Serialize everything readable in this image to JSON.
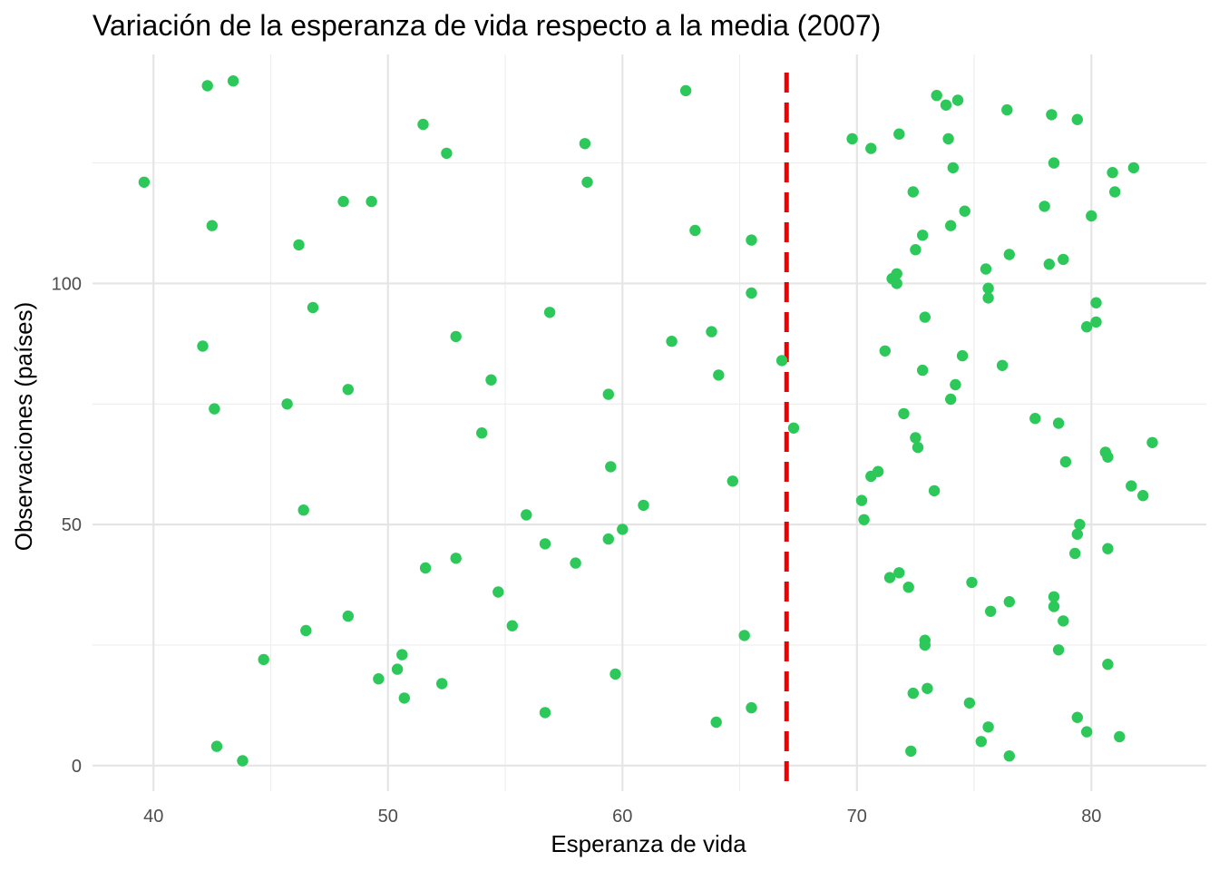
{
  "chart_data": {
    "type": "scatter",
    "title": "Variación de la esperanza de vida respecto a la media (2007)",
    "xlabel": "Esperanza de vida",
    "ylabel": "Observaciones (países)",
    "xlim": [
      37.4,
      84.9
    ],
    "ylim": [
      -5.3,
      147.5
    ],
    "x_ticks": [
      40,
      50,
      60,
      70,
      80
    ],
    "y_ticks": [
      0,
      50,
      100
    ],
    "grid": true,
    "legend": "none",
    "point_color": "#2dc85a",
    "reference_line": {
      "x": 67.0,
      "color": "#ee0000",
      "style": "dashed"
    },
    "points": [
      [
        39.6,
        121
      ],
      [
        42.3,
        141
      ],
      [
        43.4,
        142
      ],
      [
        42.5,
        112
      ],
      [
        42.1,
        87
      ],
      [
        42.6,
        74
      ],
      [
        42.7,
        4
      ],
      [
        43.8,
        1
      ],
      [
        44.7,
        22
      ],
      [
        45.7,
        75
      ],
      [
        46.2,
        108
      ],
      [
        46.4,
        53
      ],
      [
        46.5,
        28
      ],
      [
        46.8,
        95
      ],
      [
        48.1,
        117
      ],
      [
        48.3,
        78
      ],
      [
        48.3,
        31
      ],
      [
        49.3,
        117
      ],
      [
        49.6,
        18
      ],
      [
        50.4,
        20
      ],
      [
        50.6,
        23
      ],
      [
        50.7,
        14
      ],
      [
        51.5,
        133
      ],
      [
        51.6,
        41
      ],
      [
        52.3,
        17
      ],
      [
        52.5,
        127
      ],
      [
        52.9,
        89
      ],
      [
        52.9,
        43
      ],
      [
        54.0,
        69
      ],
      [
        54.4,
        80
      ],
      [
        54.7,
        36
      ],
      [
        55.3,
        29
      ],
      [
        55.9,
        52
      ],
      [
        56.7,
        46
      ],
      [
        56.7,
        11
      ],
      [
        56.9,
        94
      ],
      [
        58.0,
        42
      ],
      [
        58.4,
        129
      ],
      [
        58.5,
        121
      ],
      [
        59.4,
        77
      ],
      [
        59.4,
        47
      ],
      [
        59.5,
        62
      ],
      [
        59.7,
        19
      ],
      [
        60.0,
        49
      ],
      [
        60.9,
        54
      ],
      [
        62.1,
        88
      ],
      [
        62.7,
        140
      ],
      [
        63.1,
        111
      ],
      [
        63.8,
        90
      ],
      [
        64.0,
        9
      ],
      [
        64.1,
        81
      ],
      [
        64.7,
        59
      ],
      [
        65.2,
        27
      ],
      [
        65.5,
        98
      ],
      [
        65.5,
        109
      ],
      [
        65.5,
        12
      ],
      [
        66.8,
        84
      ],
      [
        67.3,
        70
      ],
      [
        69.8,
        130
      ],
      [
        70.2,
        55
      ],
      [
        70.3,
        51
      ],
      [
        70.6,
        128
      ],
      [
        70.6,
        60
      ],
      [
        70.9,
        61
      ],
      [
        71.2,
        86
      ],
      [
        71.4,
        39
      ],
      [
        71.5,
        101
      ],
      [
        71.7,
        102
      ],
      [
        71.7,
        100
      ],
      [
        71.8,
        131
      ],
      [
        71.8,
        40
      ],
      [
        72.0,
        73
      ],
      [
        72.2,
        37
      ],
      [
        72.3,
        3
      ],
      [
        72.4,
        119
      ],
      [
        72.4,
        15
      ],
      [
        72.5,
        107
      ],
      [
        72.5,
        68
      ],
      [
        72.6,
        66
      ],
      [
        72.8,
        110
      ],
      [
        72.8,
        82
      ],
      [
        72.9,
        93
      ],
      [
        72.9,
        26
      ],
      [
        72.9,
        25
      ],
      [
        73.0,
        16
      ],
      [
        73.3,
        57
      ],
      [
        73.4,
        139
      ],
      [
        73.8,
        137
      ],
      [
        73.9,
        130
      ],
      [
        74.0,
        112
      ],
      [
        74.0,
        76
      ],
      [
        74.1,
        124
      ],
      [
        74.2,
        79
      ],
      [
        74.3,
        138
      ],
      [
        74.5,
        85
      ],
      [
        74.6,
        115
      ],
      [
        74.8,
        13
      ],
      [
        74.9,
        38
      ],
      [
        75.3,
        5
      ],
      [
        75.5,
        103
      ],
      [
        75.6,
        99
      ],
      [
        75.6,
        97
      ],
      [
        75.6,
        8
      ],
      [
        75.7,
        32
      ],
      [
        76.2,
        83
      ],
      [
        76.4,
        136
      ],
      [
        76.5,
        106
      ],
      [
        76.5,
        2
      ],
      [
        76.5,
        34
      ],
      [
        77.6,
        72
      ],
      [
        78.0,
        116
      ],
      [
        78.2,
        104
      ],
      [
        78.3,
        135
      ],
      [
        78.4,
        35
      ],
      [
        78.4,
        33
      ],
      [
        78.4,
        125
      ],
      [
        78.6,
        24
      ],
      [
        78.6,
        71
      ],
      [
        78.8,
        105
      ],
      [
        78.8,
        30
      ],
      [
        78.9,
        63
      ],
      [
        79.3,
        44
      ],
      [
        79.4,
        48
      ],
      [
        79.4,
        10
      ],
      [
        79.4,
        134
      ],
      [
        79.5,
        50
      ],
      [
        79.8,
        91
      ],
      [
        79.8,
        7
      ],
      [
        80.0,
        114
      ],
      [
        80.2,
        96
      ],
      [
        80.2,
        92
      ],
      [
        80.6,
        65
      ],
      [
        80.7,
        64
      ],
      [
        80.7,
        45
      ],
      [
        80.7,
        21
      ],
      [
        80.9,
        123
      ],
      [
        81.0,
        119
      ],
      [
        81.2,
        6
      ],
      [
        81.7,
        58
      ],
      [
        81.8,
        124
      ],
      [
        82.2,
        56
      ],
      [
        82.6,
        67
      ]
    ]
  }
}
